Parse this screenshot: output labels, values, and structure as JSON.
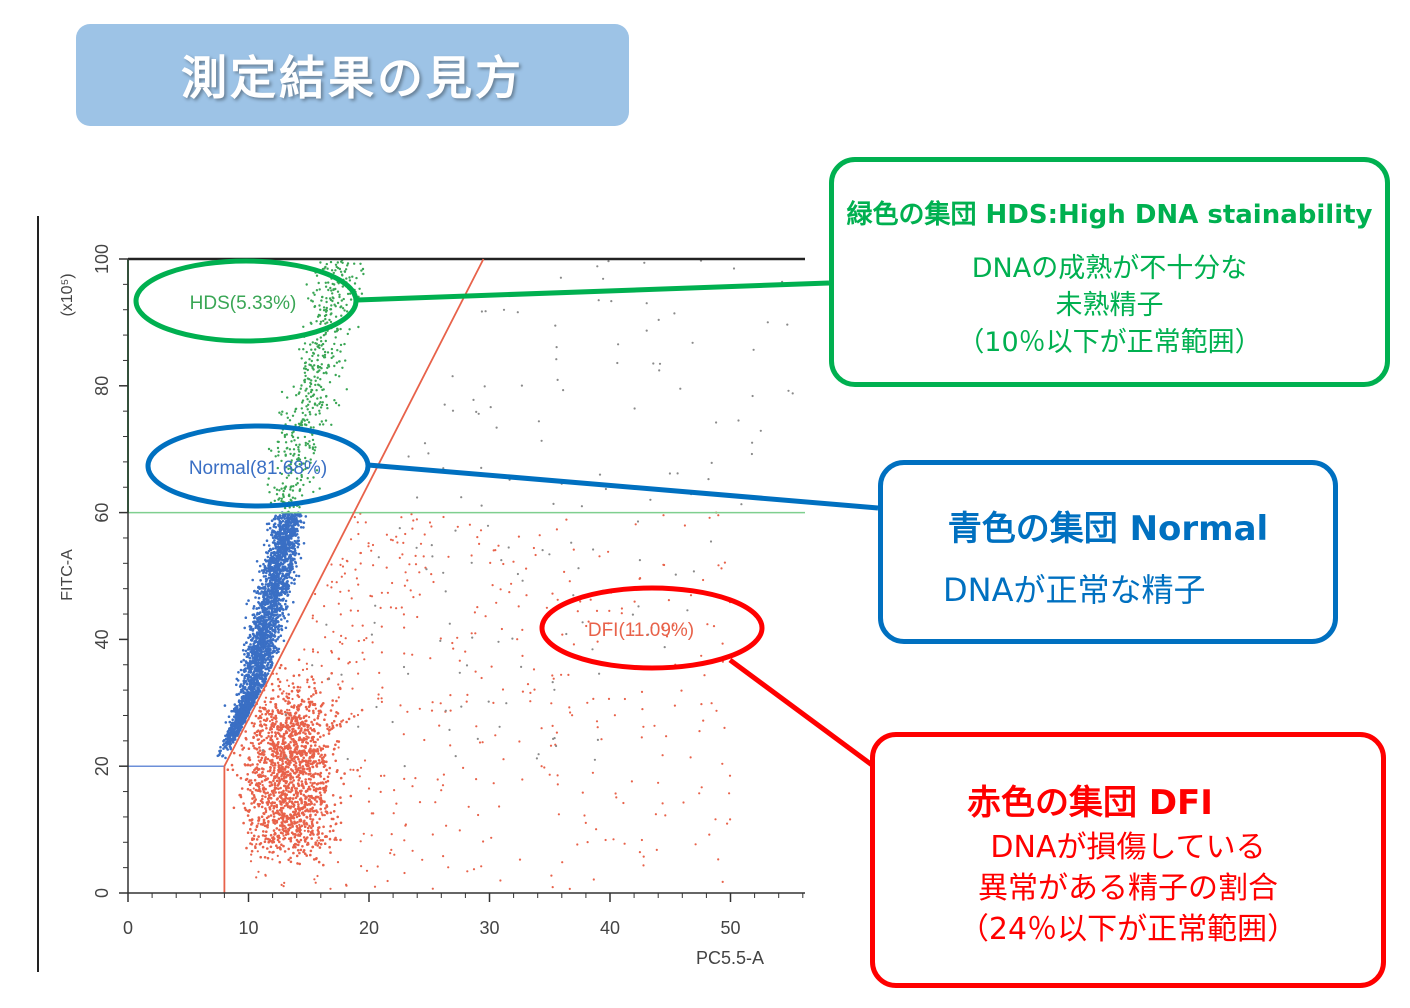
{
  "title": "測定結果の見方",
  "chart_data": {
    "type": "scatter",
    "xlabel": "PC5.5-A",
    "ylabel": "FITC-A",
    "y_unit": "(x10⁵)",
    "xlim": [
      0,
      56
    ],
    "ylim": [
      0,
      100
    ],
    "x_ticks": [
      "0",
      "10",
      "20",
      "30",
      "40",
      "50"
    ],
    "y_ticks": [
      "0",
      "20",
      "40",
      "60",
      "80",
      "100"
    ],
    "gates": {
      "hds_boundary_y": 60,
      "lower_boundary_y": 20,
      "dfi_line": [
        [
          8,
          0
        ],
        [
          8,
          20
        ],
        [
          29.5,
          100
        ]
      ]
    },
    "regions": [
      {
        "label": "HDS(5.33%)",
        "percent": 5.33,
        "color": "#3aa655"
      },
      {
        "label": "Normal(81.68%)",
        "percent": 81.68,
        "color": "#3a6fc4"
      },
      {
        "label": "DFI(11.09%)",
        "percent": 11.09,
        "color": "#e8624a"
      }
    ]
  },
  "callouts": {
    "green": {
      "heading": "緑色の集団 HDS:High DNA stainability",
      "lines": [
        "DNAの成熟が不十分な",
        "未熟精子",
        "（10％以下が正常範囲）"
      ],
      "color": "#00b050"
    },
    "blue": {
      "heading": "青色の集団 Normal",
      "lines": [
        "DNAが正常な精子"
      ],
      "color": "#0070c0"
    },
    "red": {
      "heading": "赤色の集団 DFI",
      "lines": [
        "DNAが損傷している",
        "異常がある精子の割合",
        "（24％以下が正常範囲）"
      ],
      "color": "#ff0000"
    }
  }
}
